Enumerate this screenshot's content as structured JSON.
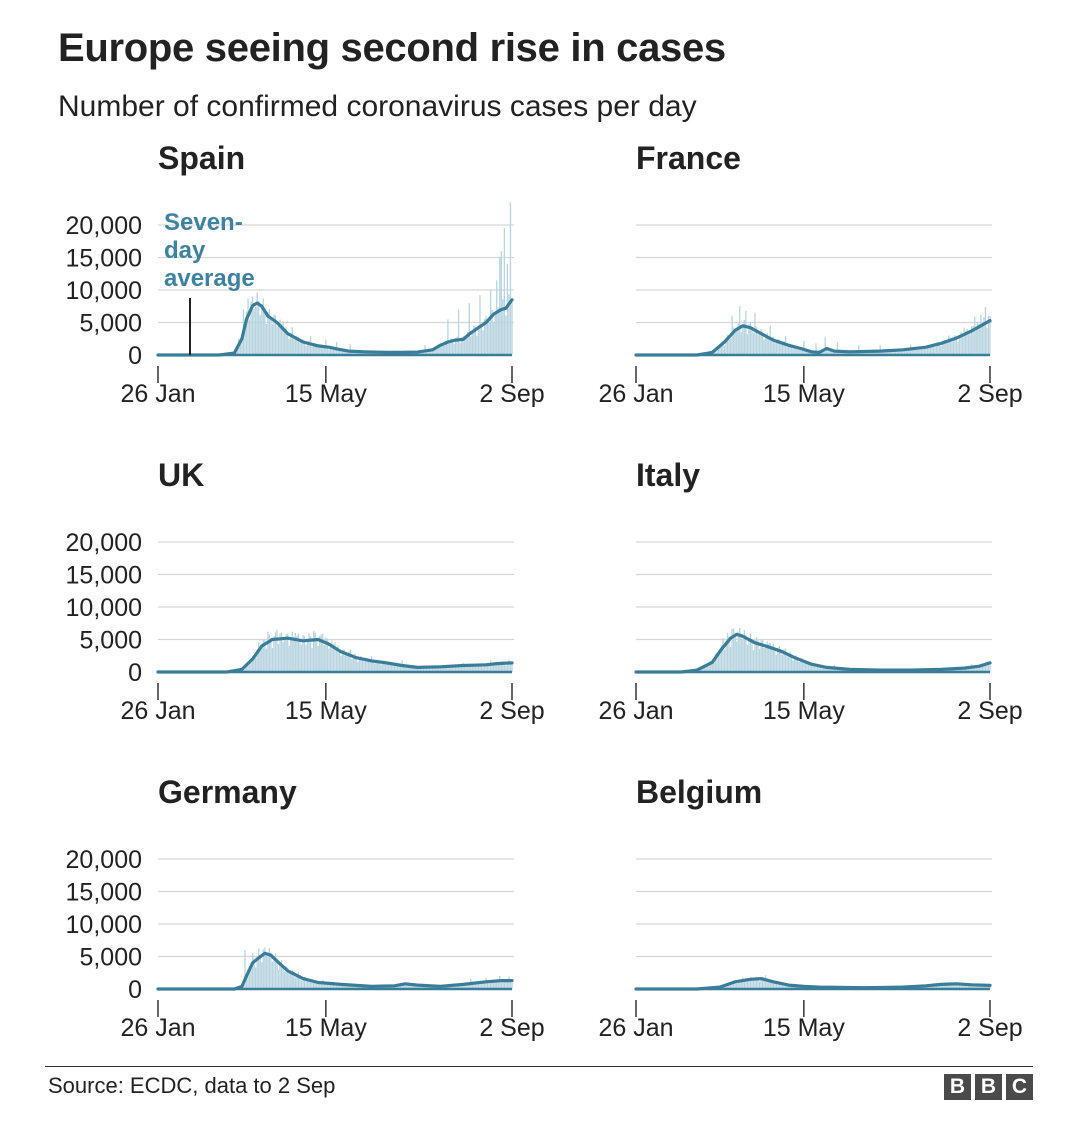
{
  "title": "Europe seeing second rise in cases",
  "subtitle": "Number of confirmed coronavirus cases per day",
  "footer": {
    "source": "Source: ECDC, data to 2 Sep",
    "logo": [
      "B",
      "B",
      "C"
    ]
  },
  "colors": {
    "line": "#3a7d99",
    "bars": "#b8d4e0",
    "grid": "#d6d6d6",
    "axis": "#333333",
    "annotation": "#3f82a0"
  },
  "chart_data": [
    {
      "type": "line",
      "title": "Spain",
      "x_ticks": [
        "26 Jan",
        "15 May",
        "2 Sep"
      ],
      "ylim": [
        0,
        20000
      ],
      "y_ticks": [
        0,
        5000,
        10000,
        15000,
        20000
      ],
      "y_tick_labels": [
        "0",
        "5,000",
        "10,000",
        "15,000",
        "20,000"
      ],
      "annotation": {
        "lines": [
          "Seven-",
          "day",
          "average"
        ]
      },
      "avg": [
        [
          0,
          0
        ],
        [
          40,
          0
        ],
        [
          50,
          300
        ],
        [
          55,
          2500
        ],
        [
          58,
          5500
        ],
        [
          62,
          7600
        ],
        [
          65,
          8000
        ],
        [
          68,
          7500
        ],
        [
          72,
          6000
        ],
        [
          78,
          5000
        ],
        [
          85,
          3300
        ],
        [
          95,
          2000
        ],
        [
          105,
          1400
        ],
        [
          112,
          1200
        ],
        [
          118,
          900
        ],
        [
          125,
          600
        ],
        [
          135,
          500
        ],
        [
          150,
          400
        ],
        [
          160,
          400
        ],
        [
          170,
          450
        ],
        [
          180,
          800
        ],
        [
          185,
          1500
        ],
        [
          190,
          2000
        ],
        [
          195,
          2300
        ],
        [
          200,
          2400
        ],
        [
          205,
          3400
        ],
        [
          210,
          4200
        ],
        [
          215,
          5000
        ],
        [
          220,
          6300
        ],
        [
          225,
          7000
        ],
        [
          228,
          7200
        ],
        [
          232,
          8500
        ]
      ],
      "spikes": [
        [
          53,
          2500
        ],
        [
          56,
          7000
        ],
        [
          59,
          8700
        ],
        [
          62,
          9000
        ],
        [
          66,
          8300
        ],
        [
          70,
          7000
        ],
        [
          76,
          6200
        ],
        [
          82,
          5200
        ],
        [
          88,
          4300
        ],
        [
          100,
          2900
        ],
        [
          110,
          2400
        ],
        [
          117,
          2000
        ],
        [
          126,
          1600
        ],
        [
          175,
          1500
        ],
        [
          190,
          5500
        ],
        [
          197,
          7000
        ],
        [
          204,
          8000
        ],
        [
          211,
          9200
        ],
        [
          218,
          10000
        ],
        [
          222,
          11500
        ],
        [
          224,
          15000
        ],
        [
          225,
          16000
        ],
        [
          227,
          19500
        ],
        [
          229,
          14000
        ],
        [
          231,
          23500
        ]
      ]
    },
    {
      "type": "line",
      "title": "France",
      "x_ticks": [
        "26 Jan",
        "15 May",
        "2 Sep"
      ],
      "ylim": [
        0,
        20000
      ],
      "y_ticks": [
        0,
        5000,
        10000,
        15000,
        20000
      ],
      "avg": [
        [
          0,
          0
        ],
        [
          40,
          0
        ],
        [
          50,
          400
        ],
        [
          58,
          2000
        ],
        [
          65,
          3800
        ],
        [
          70,
          4500
        ],
        [
          75,
          4200
        ],
        [
          82,
          3300
        ],
        [
          90,
          2300
        ],
        [
          100,
          1500
        ],
        [
          108,
          1000
        ],
        [
          115,
          500
        ],
        [
          120,
          400
        ],
        [
          125,
          1000
        ],
        [
          130,
          600
        ],
        [
          140,
          500
        ],
        [
          160,
          600
        ],
        [
          175,
          800
        ],
        [
          190,
          1200
        ],
        [
          200,
          1800
        ],
        [
          210,
          2600
        ],
        [
          220,
          3700
        ],
        [
          226,
          4500
        ],
        [
          232,
          5300
        ]
      ],
      "spikes": [
        [
          63,
          6000
        ],
        [
          68,
          7500
        ],
        [
          72,
          6800
        ],
        [
          78,
          6500
        ],
        [
          88,
          4500
        ],
        [
          98,
          2900
        ],
        [
          110,
          2200
        ],
        [
          118,
          1800
        ],
        [
          124,
          2800
        ],
        [
          132,
          2000
        ],
        [
          146,
          1500
        ],
        [
          160,
          1500
        ],
        [
          180,
          1600
        ],
        [
          205,
          3000
        ],
        [
          215,
          4200
        ],
        [
          222,
          5900
        ],
        [
          226,
          6200
        ],
        [
          229,
          7400
        ],
        [
          232,
          6000
        ]
      ]
    },
    {
      "type": "line",
      "title": "UK",
      "x_ticks": [
        "26 Jan",
        "15 May",
        "2 Sep"
      ],
      "ylim": [
        0,
        20000
      ],
      "y_ticks": [
        0,
        5000,
        10000,
        15000,
        20000
      ],
      "y_tick_labels": [
        "0",
        "5,000",
        "10,000",
        "15,000",
        "20,000"
      ],
      "avg": [
        [
          0,
          0
        ],
        [
          45,
          0
        ],
        [
          55,
          400
        ],
        [
          62,
          2000
        ],
        [
          68,
          4000
        ],
        [
          75,
          5000
        ],
        [
          85,
          5200
        ],
        [
          95,
          4800
        ],
        [
          105,
          5000
        ],
        [
          112,
          4300
        ],
        [
          120,
          3100
        ],
        [
          130,
          2200
        ],
        [
          140,
          1700
        ],
        [
          150,
          1400
        ],
        [
          160,
          1000
        ],
        [
          170,
          700
        ],
        [
          185,
          800
        ],
        [
          200,
          1000
        ],
        [
          215,
          1100
        ],
        [
          222,
          1300
        ],
        [
          232,
          1400
        ]
      ],
      "spikes": [
        [
          66,
          4500
        ],
        [
          72,
          6200
        ],
        [
          78,
          6500
        ],
        [
          84,
          5800
        ],
        [
          90,
          6000
        ],
        [
          96,
          5500
        ],
        [
          102,
          6300
        ],
        [
          108,
          5900
        ],
        [
          116,
          4600
        ],
        [
          126,
          3500
        ],
        [
          140,
          2400
        ],
        [
          160,
          1800
        ],
        [
          200,
          1400
        ],
        [
          218,
          1800
        ],
        [
          230,
          1900
        ]
      ]
    },
    {
      "type": "line",
      "title": "Italy",
      "x_ticks": [
        "26 Jan",
        "15 May",
        "2 Sep"
      ],
      "ylim": [
        0,
        20000
      ],
      "y_ticks": [
        0,
        5000,
        10000,
        15000,
        20000
      ],
      "avg": [
        [
          0,
          0
        ],
        [
          30,
          0
        ],
        [
          40,
          300
        ],
        [
          50,
          1500
        ],
        [
          56,
          3500
        ],
        [
          62,
          5200
        ],
        [
          66,
          5800
        ],
        [
          70,
          5500
        ],
        [
          78,
          4500
        ],
        [
          85,
          4000
        ],
        [
          95,
          3200
        ],
        [
          105,
          2100
        ],
        [
          115,
          1200
        ],
        [
          125,
          700
        ],
        [
          140,
          400
        ],
        [
          160,
          300
        ],
        [
          180,
          300
        ],
        [
          200,
          400
        ],
        [
          215,
          600
        ],
        [
          225,
          900
        ],
        [
          232,
          1400
        ]
      ],
      "spikes": [
        [
          52,
          2800
        ],
        [
          57,
          5200
        ],
        [
          60,
          6000
        ],
        [
          63,
          6600
        ],
        [
          67,
          6200
        ],
        [
          72,
          5700
        ],
        [
          80,
          4900
        ],
        [
          88,
          4500
        ],
        [
          98,
          3600
        ],
        [
          110,
          1800
        ],
        [
          130,
          1100
        ],
        [
          220,
          1200
        ],
        [
          230,
          1700
        ]
      ]
    },
    {
      "type": "line",
      "title": "Germany",
      "x_ticks": [
        "26 Jan",
        "15 May",
        "2 Sep"
      ],
      "ylim": [
        0,
        20000
      ],
      "y_ticks": [
        0,
        5000,
        10000,
        15000,
        20000
      ],
      "y_tick_labels": [
        "0",
        "5,000",
        "10,000",
        "15,000",
        "20,000"
      ],
      "avg": [
        [
          0,
          0
        ],
        [
          50,
          0
        ],
        [
          55,
          400
        ],
        [
          58,
          2000
        ],
        [
          62,
          4000
        ],
        [
          66,
          4800
        ],
        [
          70,
          5500
        ],
        [
          74,
          5200
        ],
        [
          78,
          4300
        ],
        [
          85,
          2800
        ],
        [
          95,
          1600
        ],
        [
          105,
          1000
        ],
        [
          120,
          700
        ],
        [
          140,
          400
        ],
        [
          155,
          500
        ],
        [
          162,
          800
        ],
        [
          170,
          600
        ],
        [
          185,
          400
        ],
        [
          200,
          700
        ],
        [
          215,
          1100
        ],
        [
          225,
          1300
        ],
        [
          232,
          1300
        ]
      ],
      "spikes": [
        [
          57,
          6000
        ],
        [
          62,
          5500
        ],
        [
          66,
          6200
        ],
        [
          70,
          6400
        ],
        [
          74,
          5600
        ],
        [
          80,
          4000
        ],
        [
          92,
          2600
        ],
        [
          108,
          1400
        ],
        [
          205,
          1600
        ],
        [
          215,
          1700
        ],
        [
          224,
          2000
        ],
        [
          230,
          1900
        ]
      ]
    },
    {
      "type": "line",
      "title": "Belgium",
      "x_ticks": [
        "26 Jan",
        "15 May",
        "2 Sep"
      ],
      "ylim": [
        0,
        20000
      ],
      "y_ticks": [
        0,
        5000,
        10000,
        15000,
        20000
      ],
      "avg": [
        [
          0,
          0
        ],
        [
          40,
          0
        ],
        [
          55,
          300
        ],
        [
          65,
          1100
        ],
        [
          75,
          1500
        ],
        [
          82,
          1600
        ],
        [
          90,
          1100
        ],
        [
          100,
          600
        ],
        [
          110,
          400
        ],
        [
          120,
          300
        ],
        [
          150,
          200
        ],
        [
          175,
          300
        ],
        [
          190,
          500
        ],
        [
          200,
          700
        ],
        [
          210,
          800
        ],
        [
          220,
          650
        ],
        [
          232,
          550
        ]
      ],
      "spikes": [
        [
          70,
          1800
        ],
        [
          78,
          1800
        ],
        [
          85,
          2100
        ],
        [
          92,
          1300
        ],
        [
          195,
          900
        ],
        [
          205,
          1000
        ],
        [
          215,
          900
        ]
      ]
    }
  ]
}
